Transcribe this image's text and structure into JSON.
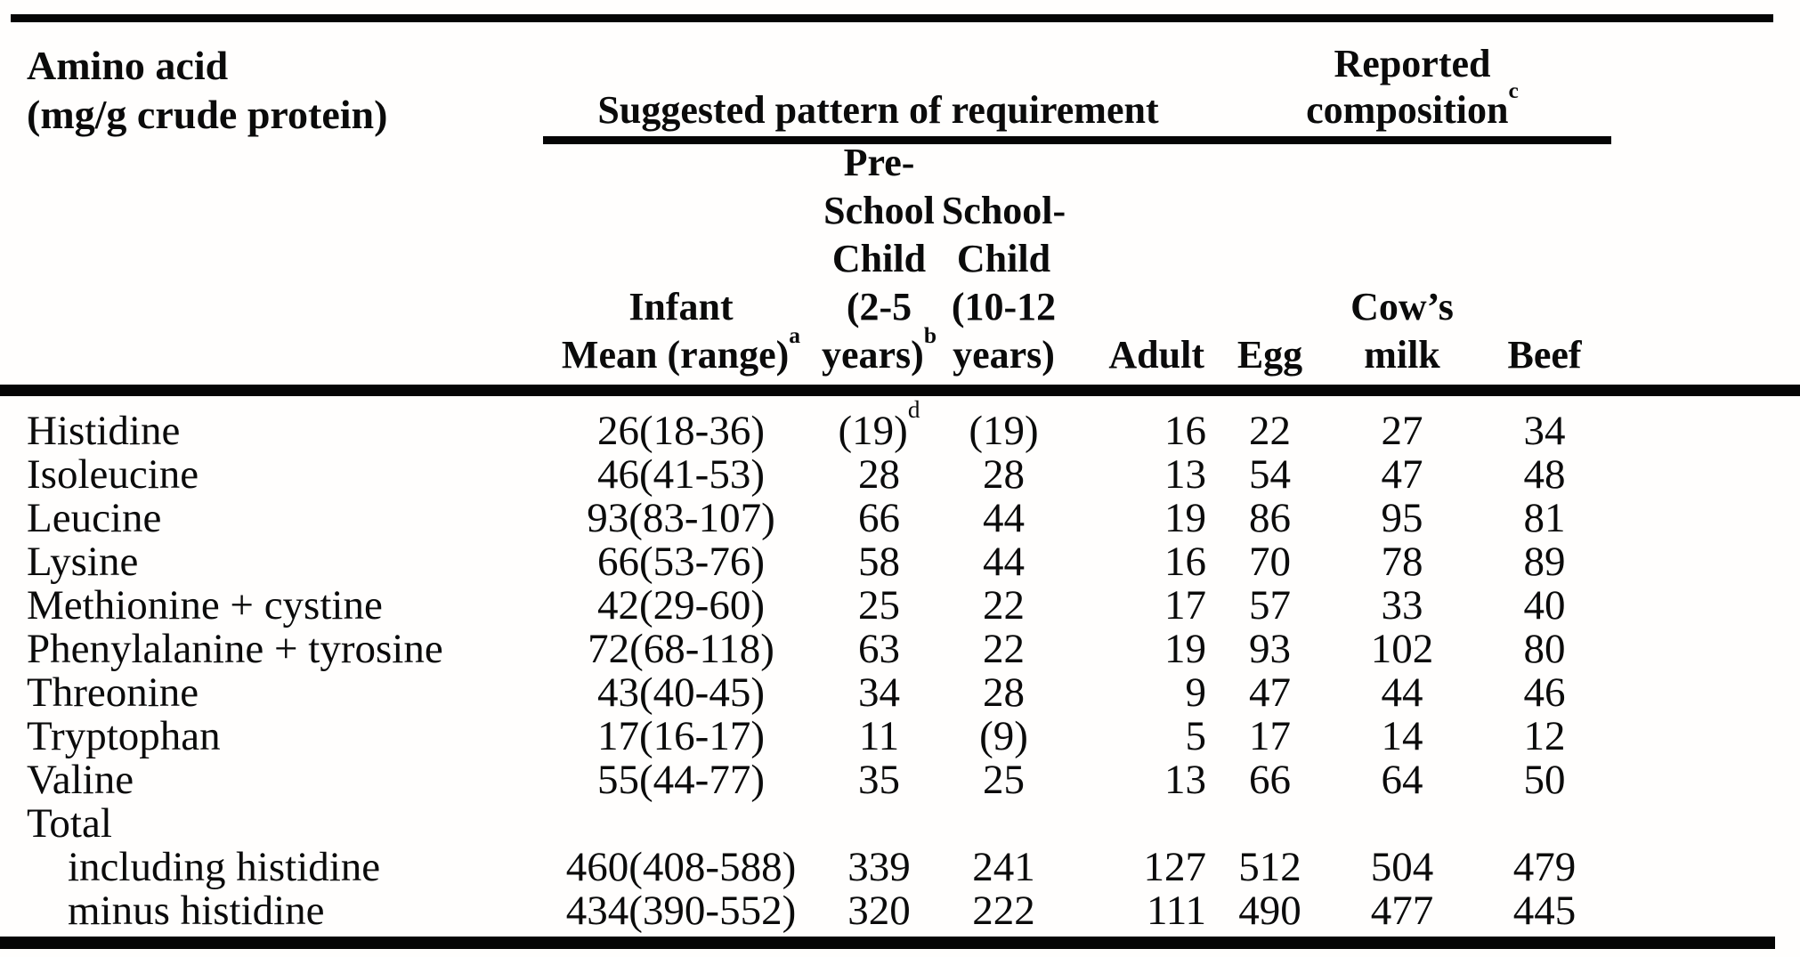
{
  "table": {
    "corner_header": "Amino acid\n(mg/g crude protein)",
    "groups": {
      "requirement": "Suggested pattern of requirement",
      "composition": "Reported\ncomposition",
      "composition_sup": "c"
    },
    "columns": {
      "infant": "Infant\nMean (range)",
      "infant_sup": "a",
      "preschool": "Pre-\nSchool\nChild\n(2-5\nyears)",
      "preschool_sup": "b",
      "school": "School-\nChild\n(10-12\nyears)",
      "adult": "Adult",
      "egg": "Egg",
      "milk": "Cow’s\nmilk",
      "beef": "Beef"
    },
    "rows": [
      {
        "name": "Histidine",
        "infant": "26(18-36)",
        "preschool": "(19)",
        "preschool_sup": "d",
        "school": "(19)",
        "adult": "16",
        "egg": "22",
        "milk": "27",
        "beef": "34"
      },
      {
        "name": "Isoleucine",
        "infant": "46(41-53)",
        "preschool": "28",
        "school": "28",
        "adult": "13",
        "egg": "54",
        "milk": "47",
        "beef": "48"
      },
      {
        "name": "Leucine",
        "infant": "93(83-107)",
        "preschool": "66",
        "school": "44",
        "adult": "19",
        "egg": "86",
        "milk": "95",
        "beef": "81"
      },
      {
        "name": "Lysine",
        "infant": "66(53-76)",
        "preschool": "58",
        "school": "44",
        "adult": "16",
        "egg": "70",
        "milk": "78",
        "beef": "89"
      },
      {
        "name": "Methionine + cystine",
        "infant": "42(29-60)",
        "preschool": "25",
        "school": "22",
        "adult": "17",
        "egg": "57",
        "milk": "33",
        "beef": "40"
      },
      {
        "name": "Phenylalanine + tyrosine",
        "infant": "72(68-118)",
        "preschool": "63",
        "school": "22",
        "adult": "19",
        "egg": "93",
        "milk": "102",
        "beef": "80"
      },
      {
        "name": "Threonine",
        "infant": "43(40-45)",
        "preschool": "34",
        "school": "28",
        "adult": "9",
        "egg": "47",
        "milk": "44",
        "beef": "46"
      },
      {
        "name": "Tryptophan",
        "infant": "17(16-17)",
        "preschool": "11",
        "school": "(9)",
        "adult": "5",
        "egg": "17",
        "milk": "14",
        "beef": "12"
      },
      {
        "name": "Valine",
        "infant": "55(44-77)",
        "preschool": "35",
        "school": "25",
        "adult": "13",
        "egg": "66",
        "milk": "64",
        "beef": "50"
      },
      {
        "name": "Total"
      },
      {
        "name": "including histidine",
        "infant": "460(408-588)",
        "preschool": "339",
        "school": "241",
        "adult": "127",
        "egg": "512",
        "milk": "504",
        "beef": "479"
      },
      {
        "name": "minus histidine",
        "infant": "434(390-552)",
        "preschool": "320",
        "school": "222",
        "adult": "111",
        "egg": "490",
        "milk": "477",
        "beef": "445"
      }
    ]
  }
}
